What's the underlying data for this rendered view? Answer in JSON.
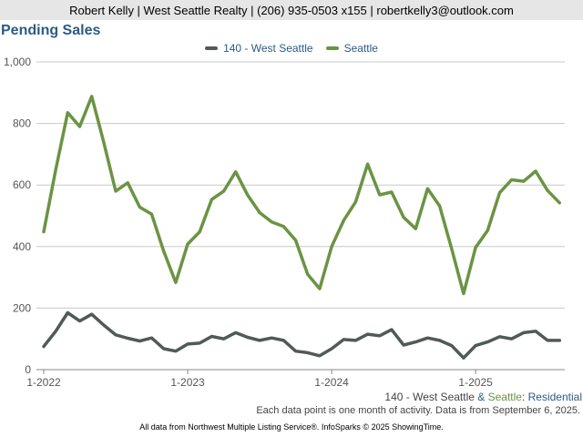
{
  "header": {
    "contact_line": "Robert Kelly | West Seattle Realty | (206) 935-0503 x155 | robertkelly3@outlook.com"
  },
  "chart_data": {
    "type": "line",
    "title": "Pending Sales",
    "xlabel": "",
    "ylabel": "",
    "x_tick_labels": [
      "1-2022",
      "1-2023",
      "1-2024",
      "1-2025"
    ],
    "y_tick_labels": [
      "0",
      "200",
      "400",
      "600",
      "800",
      "1,000"
    ],
    "ylim": [
      0,
      1000
    ],
    "grid": "horizontal",
    "legend_position": "top-center",
    "x": [
      "2022-01",
      "2022-02",
      "2022-03",
      "2022-04",
      "2022-05",
      "2022-06",
      "2022-07",
      "2022-08",
      "2022-09",
      "2022-10",
      "2022-11",
      "2022-12",
      "2023-01",
      "2023-02",
      "2023-03",
      "2023-04",
      "2023-05",
      "2023-06",
      "2023-07",
      "2023-08",
      "2023-09",
      "2023-10",
      "2023-11",
      "2023-12",
      "2024-01",
      "2024-02",
      "2024-03",
      "2024-04",
      "2024-05",
      "2024-06",
      "2024-07",
      "2024-08",
      "2024-09",
      "2024-10",
      "2024-11",
      "2024-12",
      "2025-01",
      "2025-02",
      "2025-03",
      "2025-04",
      "2025-05",
      "2025-06",
      "2025-07",
      "2025-08"
    ],
    "series": [
      {
        "name": "140 - West Seattle",
        "color": "#505a57",
        "values": [
          75,
          125,
          185,
          158,
          180,
          145,
          113,
          102,
          93,
          103,
          68,
          60,
          83,
          86,
          108,
          100,
          120,
          105,
          95,
          103,
          95,
          60,
          55,
          45,
          68,
          98,
          95,
          115,
          110,
          130,
          80,
          90,
          103,
          95,
          78,
          38,
          78,
          90,
          107,
          100,
          120,
          125,
          95,
          95
        ]
      },
      {
        "name": "Seattle",
        "color": "#6a9443",
        "values": [
          448,
          650,
          835,
          790,
          888,
          740,
          580,
          607,
          528,
          505,
          385,
          283,
          408,
          448,
          553,
          580,
          643,
          567,
          510,
          480,
          465,
          420,
          310,
          263,
          400,
          485,
          545,
          668,
          568,
          577,
          495,
          458,
          588,
          532,
          393,
          247,
          397,
          452,
          575,
          617,
          612,
          645,
          582,
          542
        ]
      }
    ]
  },
  "legend": {
    "items": [
      "140 - West Seattle",
      "Seattle"
    ]
  },
  "footer": {
    "series_part1": "140 - West Seattle",
    "series_amp": " & ",
    "series_part2": "Seattle",
    "series_colon": ": ",
    "series_part3": "Residential",
    "note": "Each data point is one month of activity. Data is from September 6, 2025.",
    "credit": "All data from Northwest Multiple Listing Service®. InfoSparks © 2025 ShowingTime."
  },
  "colors": {
    "title": "#2b5b84",
    "grid": "#c8c8c8",
    "axis": "#888888",
    "header_bg": "#e6e6e6"
  }
}
